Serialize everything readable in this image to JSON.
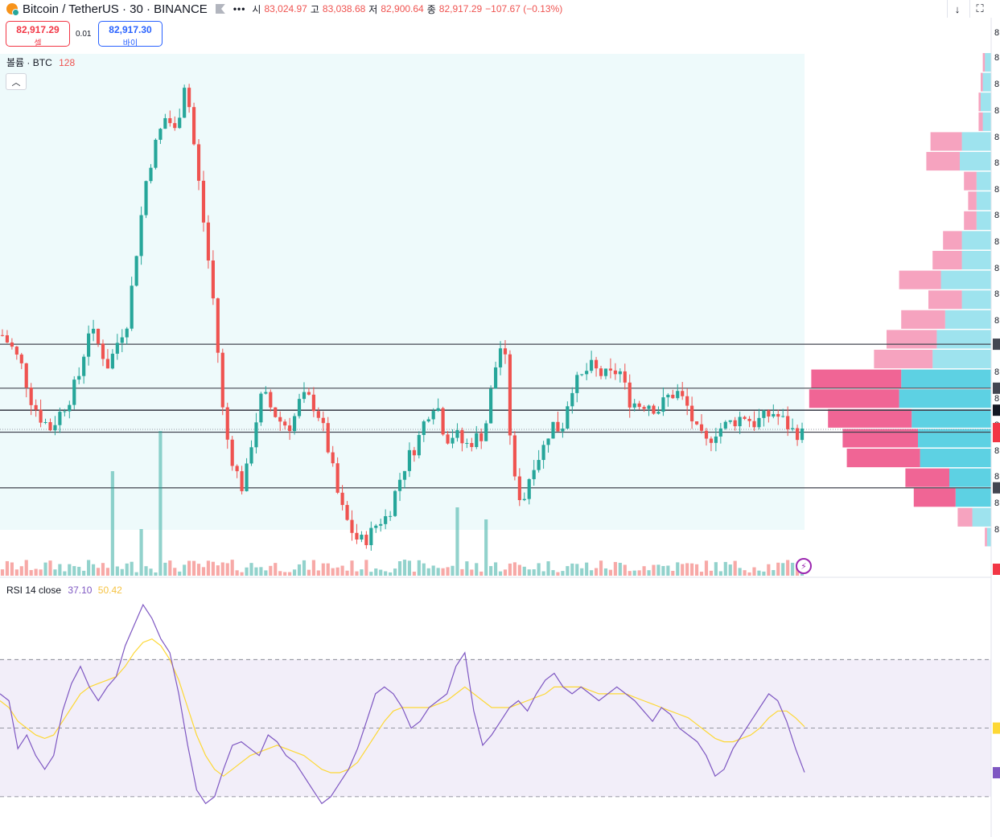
{
  "header": {
    "symbol": "Bitcoin / TetherUS · 30 · BINANCE",
    "menu_dots": "•••",
    "open_label": "시",
    "open_value": "83,024.97",
    "high_label": "고",
    "high_value": "83,038.68",
    "low_label": "저",
    "low_value": "82,900.64",
    "close_label": "종",
    "close_value": "82,917.29",
    "change": "−107.67 (−0.13%)",
    "download_icon": "arrow-down-icon",
    "layout_icon": "fullscreen-icon"
  },
  "trade": {
    "sell_price": "82,917.29",
    "sell_label": "셀",
    "spread": "0.01",
    "buy_price": "82,917.30",
    "buy_label": "바이",
    "sell_color": "#f23645",
    "buy_color": "#2962ff"
  },
  "volume_legend": {
    "name": "볼륨 · BTC",
    "value": "128"
  },
  "rsi_legend": {
    "name": "RSI 14 close",
    "rsi_value": "37.10",
    "ma_value": "50.42"
  },
  "colors": {
    "up": "#26a69a",
    "down": "#ef5350",
    "rsi_line": "#7e57c2",
    "rsi_ma": "#fdd835",
    "vp_up": "#5dd1e3",
    "vp_down": "#f06595"
  },
  "chart_data": [
    {
      "type": "candlestick",
      "name": "price",
      "approx_close_series": [
        83300,
        83250,
        83180,
        83050,
        82980,
        82940,
        83000,
        83060,
        83150,
        83330,
        83260,
        83180,
        83280,
        83360,
        83650,
        83920,
        84050,
        84150,
        84080,
        84300,
        84000,
        83700,
        83400,
        82950,
        82800,
        82700,
        82920,
        83080,
        83010,
        82960,
        82950,
        83060,
        83050,
        82980,
        82830,
        82650,
        82560,
        82500,
        82520,
        82580,
        82600,
        82720,
        82820,
        82880,
        82990,
        83050,
        82900,
        82920,
        82870,
        82900,
        82920,
        83150,
        83300,
        82750,
        82650,
        82800,
        82850,
        82960,
        82930,
        83100,
        83130,
        83180,
        83150,
        83140,
        83170,
        83050,
        83030,
        83040,
        83010,
        83060,
        83080,
        83030,
        82930,
        82880,
        82930,
        82950,
        82970,
        82990,
        82960,
        82980,
        83000,
        82970,
        82930,
        82917.29
      ],
      "horizontal_levels": [
        83265,
        83095,
        83010,
        82925,
        82710
      ],
      "last_price": 82917.29,
      "price_range_visible": [
        82560,
        84300
      ]
    },
    {
      "type": "bar",
      "name": "volume",
      "unit": "BTC",
      "last_value": 128
    },
    {
      "type": "line",
      "name": "RSI 14 close",
      "values": [
        60,
        58,
        44,
        48,
        42,
        38,
        42,
        55,
        63,
        68,
        62,
        58,
        62,
        65,
        74,
        80,
        86,
        82,
        76,
        72,
        60,
        45,
        32,
        28,
        30,
        38,
        45,
        46,
        44,
        42,
        48,
        46,
        42,
        40,
        36,
        32,
        28,
        30,
        34,
        38,
        44,
        52,
        60,
        62,
        60,
        56,
        50,
        52,
        56,
        58,
        60,
        68,
        72,
        55,
        45,
        48,
        52,
        56,
        58,
        55,
        60,
        64,
        66,
        62,
        60,
        62,
        60,
        58,
        60,
        62,
        60,
        58,
        55,
        52,
        56,
        54,
        50,
        48,
        46,
        42,
        36,
        38,
        44,
        48,
        52,
        56,
        60,
        58,
        52,
        44,
        37.1
      ],
      "ma_values": [
        58,
        56,
        52,
        50,
        48,
        47,
        48,
        52,
        56,
        60,
        62,
        63,
        64,
        65,
        68,
        72,
        75,
        76,
        74,
        70,
        64,
        56,
        48,
        42,
        38,
        36,
        38,
        40,
        42,
        43,
        44,
        45,
        44,
        43,
        42,
        40,
        38,
        37,
        37,
        38,
        40,
        44,
        48,
        52,
        55,
        56,
        56,
        56,
        56,
        57,
        58,
        60,
        62,
        60,
        58,
        56,
        56,
        56,
        57,
        58,
        59,
        60,
        62,
        62,
        62,
        62,
        61,
        60,
        60,
        60,
        60,
        59,
        58,
        57,
        56,
        55,
        54,
        53,
        51,
        49,
        47,
        46,
        46,
        47,
        48,
        50,
        53,
        55,
        55,
        53,
        50.42
      ],
      "levels": [
        70,
        50,
        30
      ],
      "last_value": 37.1,
      "ma_last": 50.42
    }
  ]
}
